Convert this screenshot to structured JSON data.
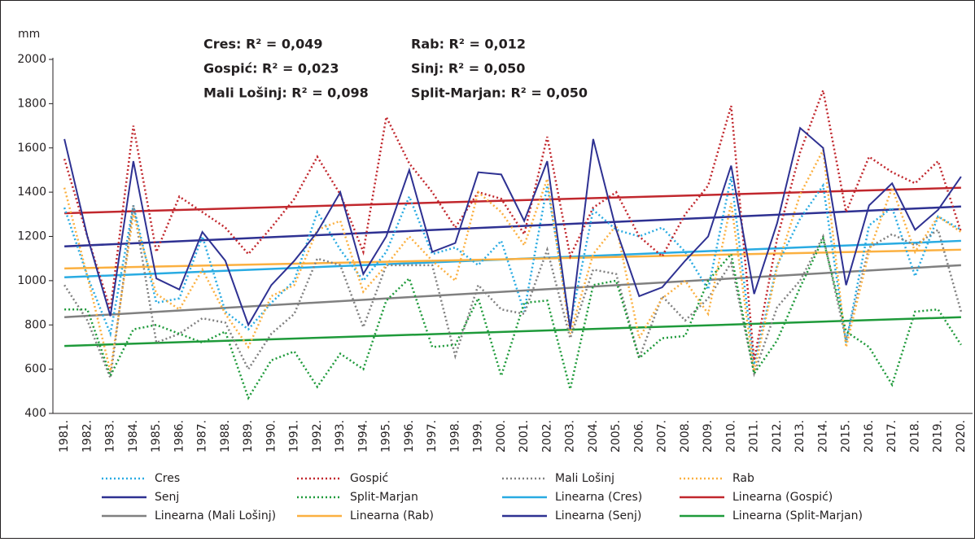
{
  "chart_data": {
    "type": "line",
    "y_label": "mm",
    "categories": [
      "1981.",
      "1982.",
      "1983.",
      "1984.",
      "1985.",
      "1986.",
      "1987.",
      "1988.",
      "1989.",
      "1990.",
      "1991.",
      "1992.",
      "1993.",
      "1994.",
      "1995.",
      "1996.",
      "1997.",
      "1998.",
      "1999.",
      "2000.",
      "2001.",
      "2002.",
      "2003.",
      "2004.",
      "2005.",
      "2006.",
      "2007.",
      "2008.",
      "2009.",
      "2010.",
      "2011.",
      "2012.",
      "2013.",
      "2014.",
      "2015.",
      "2016.",
      "2017.",
      "2018.",
      "2019.",
      "2020."
    ],
    "ylim": [
      400,
      2000
    ],
    "yticks": [
      400,
      600,
      800,
      1000,
      1200,
      1400,
      1600,
      1800,
      2000
    ],
    "series": [
      {
        "name": "Cres",
        "color": "#29abe2",
        "style": "dotted",
        "values": [
          1330,
          1020,
          760,
          1340,
          900,
          920,
          1200,
          860,
          780,
          900,
          1000,
          1310,
          1140,
          1000,
          1130,
          1380,
          1120,
          1150,
          1070,
          1180,
          860,
          1430,
          800,
          1320,
          1230,
          1200,
          1240,
          1130,
          960,
          1470,
          620,
          1070,
          1280,
          1430,
          720,
          1250,
          1330,
          1020,
          1290,
          1230
        ]
      },
      {
        "name": "Gospić",
        "color": "#c1272d",
        "style": "dotted",
        "values": [
          1550,
          1200,
          870,
          1700,
          1130,
          1380,
          1310,
          1240,
          1120,
          1240,
          1370,
          1560,
          1390,
          1130,
          1740,
          1530,
          1400,
          1240,
          1400,
          1370,
          1210,
          1650,
          1110,
          1330,
          1400,
          1200,
          1110,
          1300,
          1430,
          1790,
          640,
          1190,
          1580,
          1860,
          1310,
          1560,
          1490,
          1440,
          1540,
          1220
        ]
      },
      {
        "name": "Mali Lošinj",
        "color": "#808080",
        "style": "dotted",
        "values": [
          980,
          820,
          560,
          1340,
          720,
          760,
          830,
          810,
          600,
          760,
          850,
          1100,
          1070,
          790,
          1070,
          1070,
          1070,
          660,
          980,
          870,
          850,
          1140,
          740,
          1050,
          1030,
          650,
          930,
          820,
          920,
          1080,
          580,
          880,
          1000,
          1200,
          730,
          1150,
          1210,
          1160,
          1230,
          860
        ]
      },
      {
        "name": "Rab",
        "color": "#fbb040",
        "style": "dotted",
        "values": [
          1420,
          1020,
          590,
          1300,
          940,
          870,
          1050,
          850,
          700,
          930,
          980,
          1230,
          1270,
          950,
          1070,
          1200,
          1090,
          1000,
          1400,
          1310,
          1160,
          1460,
          760,
          1120,
          1250,
          740,
          920,
          1000,
          850,
          1350,
          590,
          1060,
          1390,
          1590,
          700,
          1130,
          1420,
          1130,
          1290,
          1220
        ]
      },
      {
        "name": "Senj",
        "color": "#2e3192",
        "style": "solid",
        "values": [
          1640,
          1200,
          840,
          1540,
          1010,
          960,
          1220,
          1090,
          800,
          980,
          1090,
          1220,
          1400,
          1030,
          1200,
          1500,
          1130,
          1170,
          1490,
          1480,
          1270,
          1540,
          780,
          1640,
          1230,
          930,
          970,
          1090,
          1200,
          1520,
          940,
          1260,
          1690,
          1600,
          980,
          1340,
          1440,
          1230,
          1320,
          1470
        ]
      },
      {
        "name": "Split-Marjan",
        "color": "#1e9a3a",
        "style": "dotted",
        "values": [
          870,
          870,
          570,
          780,
          800,
          760,
          720,
          770,
          470,
          640,
          680,
          520,
          670,
          600,
          910,
          1010,
          700,
          710,
          920,
          570,
          900,
          910,
          510,
          980,
          1000,
          650,
          740,
          750,
          1000,
          1120,
          580,
          730,
          970,
          1190,
          770,
          700,
          530,
          860,
          870,
          710
        ]
      }
    ],
    "trendlines": [
      {
        "name": "Linearna (Cres)",
        "color": "#29abe2",
        "start": 1015,
        "end": 1180
      },
      {
        "name": "Linearna (Gospić)",
        "color": "#c1272d",
        "start": 1305,
        "end": 1420
      },
      {
        "name": "Linearna (Mali Lošinj)",
        "color": "#808080",
        "start": 835,
        "end": 1070
      },
      {
        "name": "Linearna (Rab)",
        "color": "#fbb040",
        "start": 1055,
        "end": 1140
      },
      {
        "name": "Linearna (Senj)",
        "color": "#2e3192",
        "start": 1155,
        "end": 1335
      },
      {
        "name": "Linearna (Split-Marjan)",
        "color": "#1e9a3a",
        "start": 705,
        "end": 835
      }
    ],
    "annotations": [
      "Cres: R² = 0,049",
      "Gospić: R² = 0,023",
      "Mali Lošinj: R² = 0,098",
      "Rab: R² = 0,012",
      "Sinj: R² = 0,050",
      "Split-Marjan: R² = 0,050"
    ]
  }
}
